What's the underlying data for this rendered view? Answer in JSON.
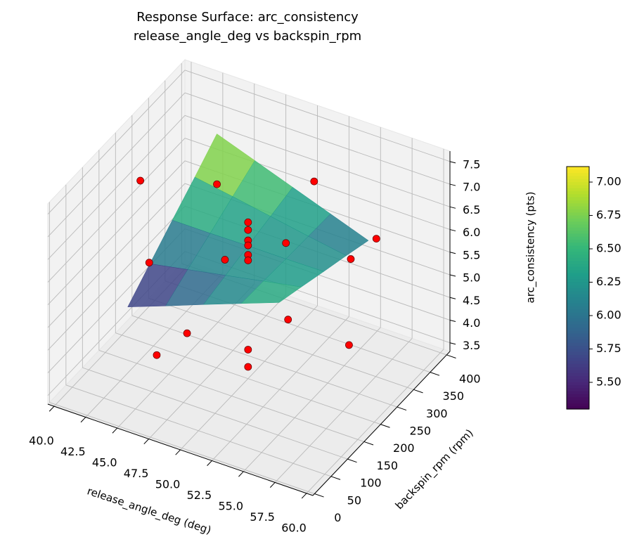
{
  "chart_data": {
    "type": "surface3d",
    "title": [
      "Response Surface: arc_consistency",
      "release_angle_deg vs backspin_rpm"
    ],
    "x_label": "release_angle_deg (deg)",
    "y_label": "backspin_rpm (rpm)",
    "z_label": "arc_consistency (pts)",
    "xlim": [
      39.5,
      60.5
    ],
    "ylim": [
      -5,
      410
    ],
    "zlim": [
      3.31,
      7.73
    ],
    "xticks": [
      {
        "value": 40,
        "label": "40.0"
      },
      42.5,
      {
        "value": 45,
        "label": "45.0"
      },
      47.5,
      {
        "value": 50,
        "label": "50.0"
      },
      52.5,
      {
        "value": 55,
        "label": "55.0"
      },
      57.5,
      {
        "value": 60,
        "label": "60.0"
      }
    ],
    "yticks": [
      0,
      50,
      100,
      150,
      200,
      250,
      300,
      350,
      400
    ],
    "zticks": [
      3.5,
      {
        "value": 4,
        "label": "4.0"
      },
      4.5,
      {
        "value": 5,
        "label": "5.0"
      },
      5.5,
      {
        "value": 6,
        "label": "6.0"
      },
      6.5,
      {
        "value": 7,
        "label": "7.0"
      },
      7.5
    ],
    "grid": true,
    "colormap": "viridis",
    "surface": {
      "x": [
        44,
        47,
        50,
        53,
        56
      ],
      "y": [
        65,
        132,
        200,
        268,
        335
      ],
      "z": [
        [
          5.35,
          5.66,
          5.98,
          6.29,
          6.6
        ],
        [
          5.79,
          5.95,
          6.11,
          6.27,
          6.43
        ],
        [
          6.23,
          6.23,
          6.24,
          6.24,
          6.25
        ],
        [
          6.66,
          6.52,
          6.37,
          6.22,
          6.08
        ],
        [
          7.1,
          6.8,
          6.5,
          6.2,
          5.9
        ]
      ]
    },
    "points": {
      "color": "#ff0000",
      "x": [
        40,
        44,
        44,
        47,
        48,
        50,
        53,
        55,
        50,
        50,
        50,
        50,
        50,
        50,
        50,
        50,
        58,
        55,
        56.5,
        50
      ],
      "y": [
        256,
        335,
        130,
        130,
        0,
        130,
        200,
        130,
        200,
        200,
        200,
        200,
        200,
        200,
        200,
        200,
        200,
        320,
        340,
        400
      ],
      "z": [
        6.29,
        5.99,
        5.83,
        4.56,
        5.17,
        6.47,
        6.59,
        5.63,
        6.76,
        6.59,
        6.36,
        6.25,
        6.04,
        5.92,
        3.95,
        3.57,
        4.82,
        5.51,
        5.95,
        6.13
      ]
    },
    "colorbar": {
      "lim": [
        5.3,
        7.116
      ],
      "ticks": [
        {
          "value": 5.5,
          "label": "5.50"
        },
        {
          "value": 5.75,
          "label": "5.75"
        },
        {
          "value": 6,
          "label": "6.00"
        },
        {
          "value": 6.25,
          "label": "6.25"
        },
        {
          "value": 6.5,
          "label": "6.50"
        },
        {
          "value": 6.75,
          "label": "6.75"
        },
        {
          "value": 7,
          "label": "7.00"
        }
      ]
    }
  }
}
